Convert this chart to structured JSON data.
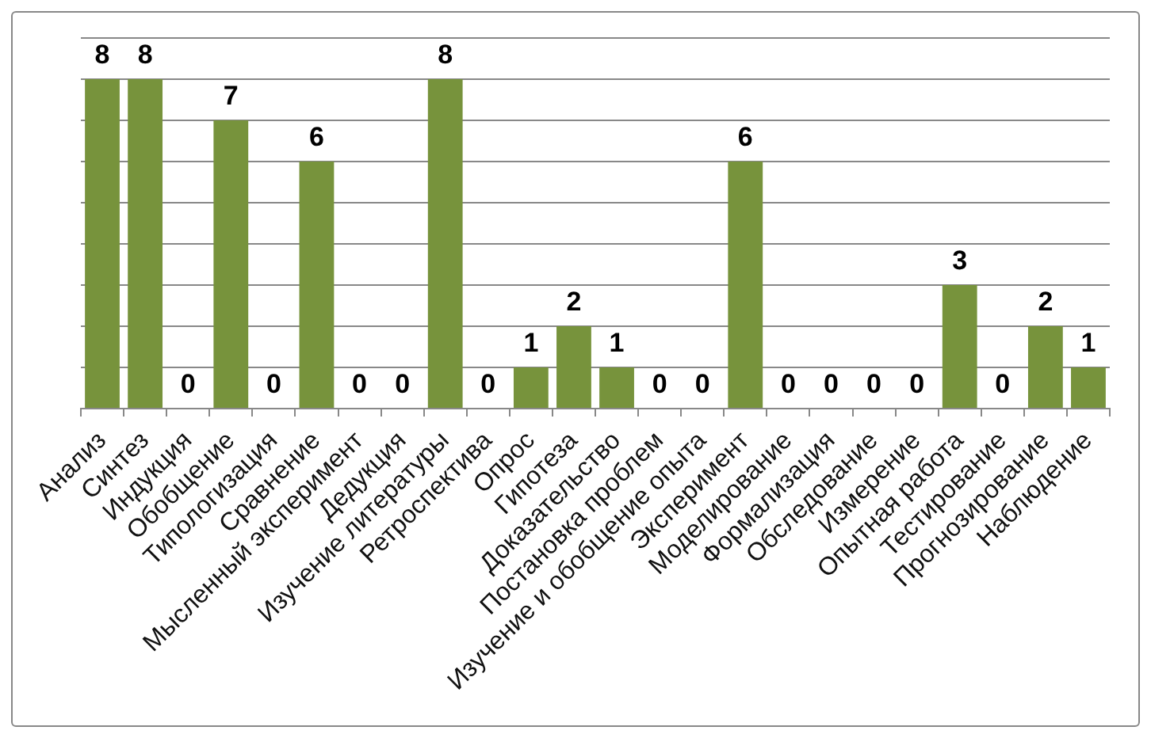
{
  "chart_data": {
    "type": "bar",
    "categories": [
      "Анализ",
      "Синтез",
      "Индукция",
      "Обобщение",
      "Типологизация",
      "Сравнение",
      "Мысленный эксперимент",
      "Дедукция",
      "Изучение литературы",
      "Ретроспектива",
      "Опрос",
      "Гипотеза",
      "Доказательство",
      "Постановка проблем",
      "Изучение и обобщение опыта",
      "Эксперимент",
      "Моделирование",
      "Формализация",
      "Обследование",
      "Измерение",
      "Опытная работа",
      "Тестирование",
      "Прогнозирование",
      "Наблюдение"
    ],
    "values": [
      8,
      8,
      0,
      7,
      0,
      6,
      0,
      0,
      8,
      0,
      1,
      2,
      1,
      0,
      0,
      6,
      0,
      0,
      0,
      0,
      3,
      0,
      2,
      1
    ],
    "color": "#77933c",
    "ylim": [
      0,
      9
    ],
    "yticks": [
      {
        "value": 0,
        "label": null
      },
      {
        "value": 1,
        "label": null
      },
      {
        "value": 2,
        "label": null
      },
      {
        "value": 3,
        "label": null
      },
      {
        "value": 4,
        "label": null
      },
      {
        "value": 5,
        "label": null
      },
      {
        "value": 6,
        "label": null
      },
      {
        "value": 7,
        "label": null
      },
      {
        "value": 8,
        "label": null
      },
      {
        "value": 9,
        "label": null
      }
    ],
    "tick_labels": "x",
    "grid": "y",
    "data_labels": true
  }
}
